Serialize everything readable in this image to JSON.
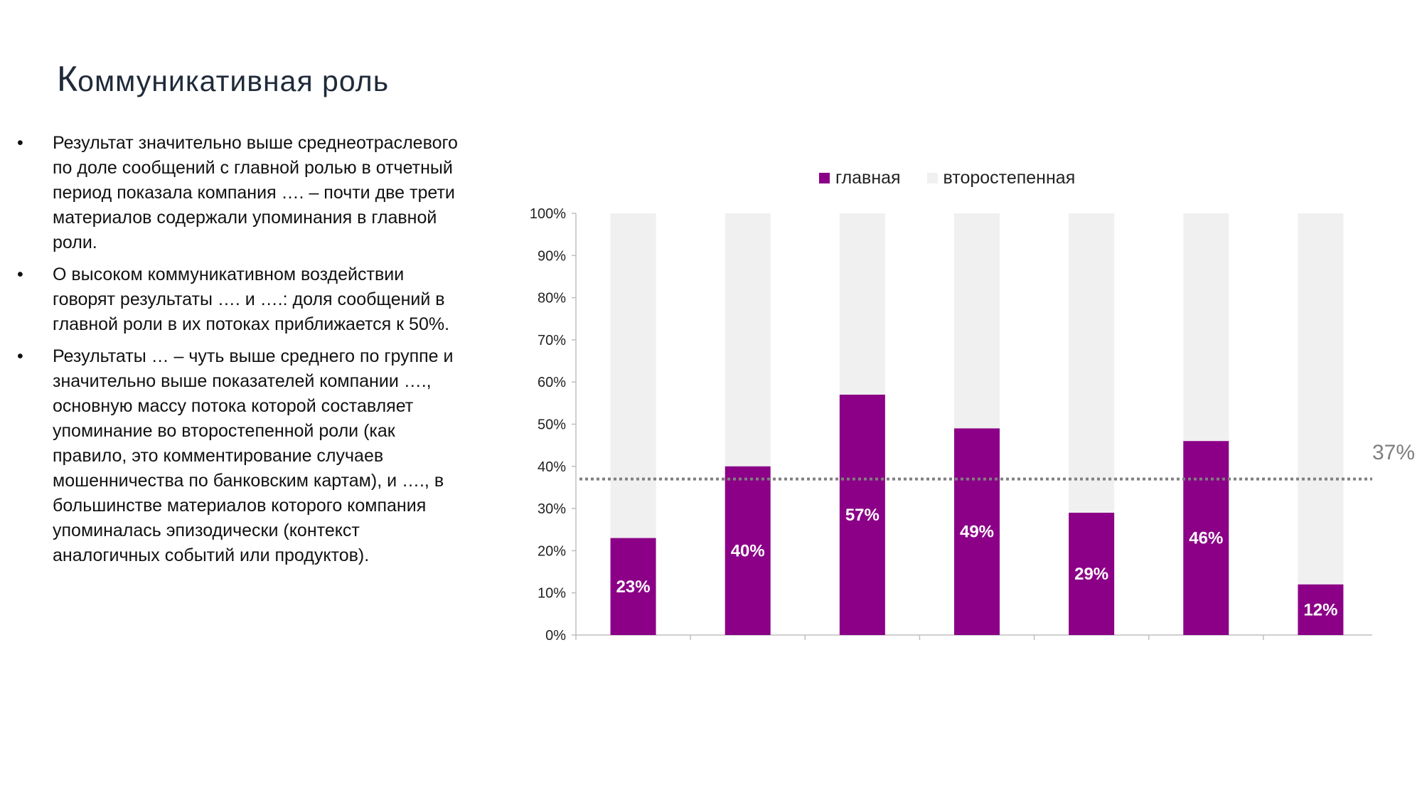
{
  "slide": {
    "title_first": "К",
    "title_rest": "оммуникативная роль",
    "bullets": [
      "Результат значительно выше среднеотраслевого по доле сообщений с главной ролью в отчетный период показала компания …. – почти две трети материалов содержали упоминания в главной роли.",
      "О высоком коммуникативном воздействии говорят результаты …. и ….: доля сообщений в главной роли в их потоках приближается к 50%.",
      "Результаты … – чуть выше среднего по группе и значительно выше показателей компании …., основную массу потока которой составляет упоминание во второстепенной роли (как правило, это комментирование случаев мошенничества по банковским картам), и …., в большинстве материалов которого компания упоминалась эпизодически (контекст аналогичных событий или продуктов)."
    ],
    "bullet_symbol": "•"
  },
  "chart_data": {
    "type": "bar",
    "stacked": true,
    "categories": [
      "",
      "",
      "",
      "",
      "",
      "",
      ""
    ],
    "series": [
      {
        "name": "главная",
        "values": [
          23,
          40,
          57,
          49,
          29,
          46,
          12
        ],
        "color": "#8B0087"
      },
      {
        "name": "второстепенная",
        "values": [
          77,
          60,
          43,
          51,
          71,
          54,
          88
        ],
        "color": "#F0F0F0"
      }
    ],
    "data_labels": [
      "23%",
      "40%",
      "57%",
      "49%",
      "29%",
      "46%",
      "12%"
    ],
    "y_ticks": [
      "0%",
      "10%",
      "20%",
      "30%",
      "40%",
      "50%",
      "60%",
      "70%",
      "80%",
      "90%",
      "100%"
    ],
    "ylim": [
      0,
      100
    ],
    "reference_line": {
      "value": 37,
      "label": "37%",
      "style": "dotted",
      "color": "#808080"
    },
    "legend_position": "top",
    "grid": false
  }
}
